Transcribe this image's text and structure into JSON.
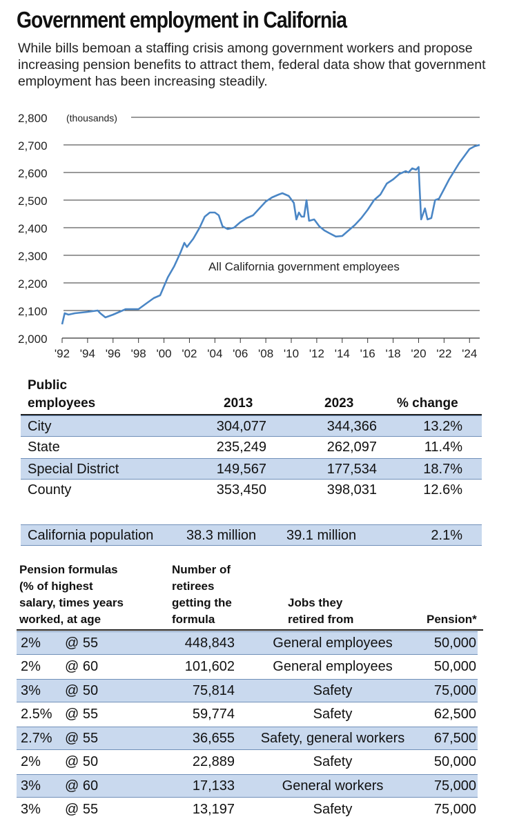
{
  "title": "Government employment in California",
  "subtitle": "While bills bemoan a staffing crisis among government workers and propose increasing pension benefits to attract them, federal data show that government employment has been increasing steadily.",
  "chart_data": {
    "type": "line",
    "title": "All California government employees",
    "ylabel": "(thousands)",
    "ylim": [
      2000,
      2800
    ],
    "yticks": [
      "2,000",
      "2,100",
      "2,200",
      "2,300",
      "2,400",
      "2,500",
      "2,600",
      "2,700",
      "2,800"
    ],
    "xticks": [
      "'92",
      "'94",
      "'96",
      "'98",
      "'00",
      "'02",
      "'04",
      "'06",
      "'08",
      "'10",
      "'12",
      "'14",
      "'16",
      "'18",
      "'20",
      "'22",
      "'24"
    ],
    "xlim": [
      1992,
      2024.8
    ],
    "series": [
      {
        "name": "All California government employees",
        "color": "#4a86c5",
        "points": [
          [
            1992.0,
            2050
          ],
          [
            1992.2,
            2090
          ],
          [
            1992.5,
            2085
          ],
          [
            1993,
            2090
          ],
          [
            1994,
            2095
          ],
          [
            1994.8,
            2100
          ],
          [
            1995,
            2090
          ],
          [
            1995.4,
            2075
          ],
          [
            1996,
            2085
          ],
          [
            1997,
            2105
          ],
          [
            1998,
            2105
          ],
          [
            1998.6,
            2125
          ],
          [
            1999.2,
            2145
          ],
          [
            1999.7,
            2155
          ],
          [
            2000.3,
            2220
          ],
          [
            2000.8,
            2260
          ],
          [
            2001.3,
            2310
          ],
          [
            2001.6,
            2345
          ],
          [
            2001.8,
            2330
          ],
          [
            2002.3,
            2360
          ],
          [
            2002.8,
            2400
          ],
          [
            2003.2,
            2440
          ],
          [
            2003.6,
            2455
          ],
          [
            2004.0,
            2455
          ],
          [
            2004.3,
            2445
          ],
          [
            2004.6,
            2405
          ],
          [
            2005.0,
            2395
          ],
          [
            2005.5,
            2400
          ],
          [
            2006.0,
            2420
          ],
          [
            2006.5,
            2435
          ],
          [
            2007.0,
            2445
          ],
          [
            2007.5,
            2470
          ],
          [
            2008.0,
            2495
          ],
          [
            2008.5,
            2510
          ],
          [
            2009.0,
            2520
          ],
          [
            2009.3,
            2525
          ],
          [
            2009.8,
            2515
          ],
          [
            2010.2,
            2490
          ],
          [
            2010.4,
            2430
          ],
          [
            2010.6,
            2455
          ],
          [
            2010.8,
            2440
          ],
          [
            2011.0,
            2440
          ],
          [
            2011.2,
            2500
          ],
          [
            2011.4,
            2425
          ],
          [
            2011.8,
            2430
          ],
          [
            2012.2,
            2405
          ],
          [
            2012.6,
            2390
          ],
          [
            2013.0,
            2380
          ],
          [
            2013.5,
            2368
          ],
          [
            2014.0,
            2370
          ],
          [
            2014.5,
            2390
          ],
          [
            2015.0,
            2410
          ],
          [
            2015.5,
            2435
          ],
          [
            2016.0,
            2465
          ],
          [
            2016.5,
            2500
          ],
          [
            2017.0,
            2520
          ],
          [
            2017.5,
            2560
          ],
          [
            2018.0,
            2575
          ],
          [
            2018.5,
            2595
          ],
          [
            2019.0,
            2605
          ],
          [
            2019.2,
            2600
          ],
          [
            2019.5,
            2615
          ],
          [
            2019.8,
            2610
          ],
          [
            2020.0,
            2620
          ],
          [
            2020.1,
            2525
          ],
          [
            2020.2,
            2430
          ],
          [
            2020.5,
            2470
          ],
          [
            2020.7,
            2430
          ],
          [
            2021.0,
            2435
          ],
          [
            2021.3,
            2500
          ],
          [
            2021.6,
            2505
          ],
          [
            2022.0,
            2540
          ],
          [
            2022.4,
            2575
          ],
          [
            2022.8,
            2605
          ],
          [
            2023.2,
            2635
          ],
          [
            2023.6,
            2660
          ],
          [
            2024.0,
            2685
          ],
          [
            2024.4,
            2695
          ],
          [
            2024.8,
            2700
          ]
        ]
      }
    ]
  },
  "public_table": {
    "label_line1": "Public",
    "label_line2": "employees",
    "col_2013": "2013",
    "col_2023": "2023",
    "col_change": "% change",
    "rows": [
      {
        "name": "City",
        "y2013": "304,077",
        "y2023": "344,366",
        "change": "13.2%"
      },
      {
        "name": "State",
        "y2013": "235,249",
        "y2023": "262,097",
        "change": "11.4%"
      },
      {
        "name": "Special District",
        "y2013": "149,567",
        "y2023": "177,534",
        "change": "18.7%"
      },
      {
        "name": "County",
        "y2013": "353,450",
        "y2023": "398,031",
        "change": "12.6%"
      }
    ],
    "population": {
      "name": "California population",
      "y2013": "38.3 million",
      "y2023": "39.1 million",
      "change": "2.1%"
    }
  },
  "pension_table": {
    "h1": [
      "Pension formulas",
      "(% of highest",
      "salary, times years",
      "worked, at age"
    ],
    "h2": [
      "Number of",
      "retirees",
      "getting the",
      "formula"
    ],
    "h3": [
      "Jobs they",
      "retired from"
    ],
    "h4": "Pension*",
    "rows": [
      {
        "pct": "2%",
        "age": "@ 55",
        "num": "448,843",
        "job": "General employees",
        "pension": "50,000"
      },
      {
        "pct": "2%",
        "age": "@ 60",
        "num": "101,602",
        "job": "General employees",
        "pension": "50,000"
      },
      {
        "pct": "3%",
        "age": "@ 50",
        "num": "75,814",
        "job": "Safety",
        "pension": "75,000"
      },
      {
        "pct": "2.5%",
        "age": "@ 55",
        "num": "59,774",
        "job": "Safety",
        "pension": "62,500"
      },
      {
        "pct": "2.7%",
        "age": "@ 55",
        "num": "36,655",
        "job": "Safety, general workers",
        "pension": "67,500"
      },
      {
        "pct": "2%",
        "age": "@ 50",
        "num": "22,889",
        "job": "Safety",
        "pension": "50,000"
      },
      {
        "pct": "3%",
        "age": "@ 60",
        "num": "17,133",
        "job": "General workers",
        "pension": "75,000"
      },
      {
        "pct": "3%",
        "age": "@ 55",
        "num": "13,197",
        "job": "Safety",
        "pension": "75,000"
      }
    ]
  }
}
